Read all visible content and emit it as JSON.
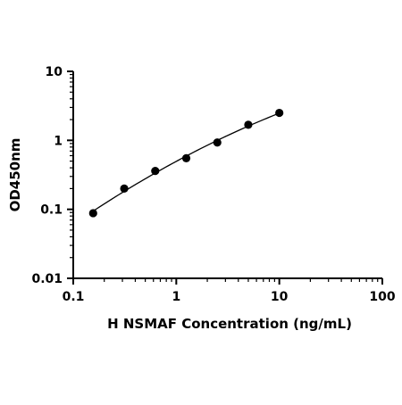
{
  "chart_data": {
    "type": "scatter",
    "title": "",
    "xlabel": "H NSMAF Concentration (ng/mL)",
    "ylabel": "OD450nm",
    "x_scale": "log",
    "y_scale": "log",
    "xlim": [
      0.1,
      100
    ],
    "ylim": [
      0.01,
      10
    ],
    "x_ticks": [
      "0.1",
      "1",
      "10",
      "100"
    ],
    "y_ticks": [
      "0.01",
      "0.1",
      "1",
      "10"
    ],
    "grid": false,
    "legend": "none",
    "series": [
      {
        "x": [
          0.156,
          0.3125,
          0.625,
          1.25,
          2.5,
          5,
          10
        ],
        "y": [
          0.088,
          0.2,
          0.36,
          0.55,
          0.93,
          1.68,
          2.5
        ],
        "marker_color": "#000000",
        "fit_curve": true
      }
    ]
  }
}
